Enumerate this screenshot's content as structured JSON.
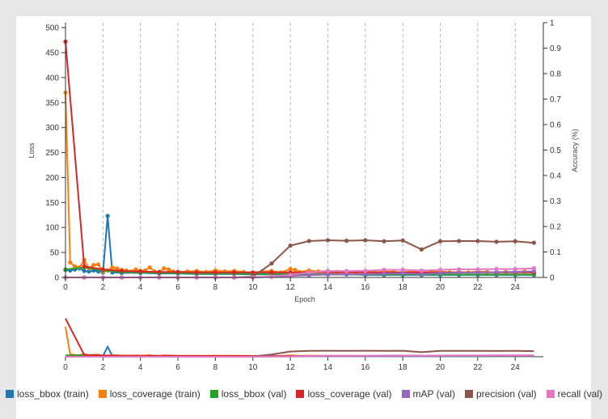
{
  "chart_data": {
    "type": "line",
    "xlabel": "Epoch",
    "ylabel": "Loss",
    "y2label": "Accuracy (%)",
    "xlim": [
      0,
      25.5
    ],
    "ylim": [
      0,
      510
    ],
    "y2lim": [
      0,
      1
    ],
    "xticks": [
      0,
      2,
      4,
      6,
      8,
      10,
      12,
      14,
      16,
      18,
      20,
      22,
      24
    ],
    "yticks": [
      0,
      50,
      100,
      150,
      200,
      250,
      300,
      350,
      400,
      450,
      500
    ],
    "y2ticks": [
      0,
      0.1,
      0.2,
      0.3,
      0.4,
      0.5,
      0.6,
      0.7,
      0.8,
      0.9,
      1
    ],
    "grid": "vertical dashed",
    "legend_position": "bottom",
    "series": [
      {
        "name": "loss_bbox (train)",
        "color": "#1f77b4",
        "axis": "left",
        "x": [
          0,
          0.25,
          0.5,
          0.75,
          1,
          1.25,
          1.5,
          1.75,
          2,
          2.25,
          2.5,
          3,
          4,
          5,
          6,
          7,
          8,
          9,
          10,
          11,
          12,
          13,
          14,
          15,
          16,
          17,
          18,
          19,
          20,
          21,
          22,
          23,
          24,
          25
        ],
        "y": [
          15,
          14,
          16,
          18,
          13,
          12,
          14,
          12,
          10,
          123,
          10,
          9,
          9,
          8,
          8,
          7,
          7,
          7,
          6,
          6,
          6,
          6,
          6,
          6,
          5,
          5,
          5,
          5,
          5,
          5,
          5,
          5,
          5,
          5
        ]
      },
      {
        "name": "loss_coverage (train)",
        "color": "#ff7f0e",
        "axis": "left",
        "x": [
          0,
          0.25,
          0.5,
          0.75,
          1,
          1.25,
          1.5,
          1.75,
          2,
          2.25,
          2.5,
          2.75,
          3,
          3.25,
          3.5,
          3.75,
          4,
          4.25,
          4.5,
          4.75,
          5,
          5.25,
          5.5,
          5.75,
          6,
          6.5,
          7,
          7.5,
          8,
          8.5,
          9,
          9.5,
          10,
          10.5,
          11,
          11.5,
          12,
          12.25,
          12.5,
          13,
          13.5,
          14,
          14.5,
          15,
          15.5,
          16,
          16.5,
          17,
          17.5,
          18,
          18.5,
          19,
          19.5,
          20,
          20.5,
          21,
          21.5,
          22,
          22.5,
          23,
          23.5,
          24,
          24.5,
          25
        ],
        "y": [
          370,
          30,
          22,
          20,
          35,
          18,
          25,
          26,
          12,
          14,
          20,
          18,
          15,
          14,
          12,
          16,
          13,
          14,
          20,
          12,
          10,
          18,
          16,
          12,
          11,
          12,
          13,
          11,
          14,
          12,
          13,
          11,
          10,
          12,
          13,
          10,
          17,
          15,
          11,
          14,
          12,
          13,
          11,
          12,
          11,
          12,
          10,
          12,
          11,
          10,
          12,
          10,
          11,
          12,
          10,
          11,
          10,
          12,
          11,
          10,
          11,
          10,
          12,
          9
        ]
      },
      {
        "name": "loss_bbox (val)",
        "color": "#2ca02c",
        "axis": "left",
        "x": [
          0,
          1,
          2,
          3,
          4,
          5,
          6,
          7,
          8,
          9,
          10,
          11,
          12,
          13,
          14,
          15,
          16,
          17,
          18,
          19,
          20,
          21,
          22,
          23,
          24,
          25
        ],
        "y": [
          16,
          20,
          14,
          11,
          10,
          9,
          9,
          8,
          8,
          8,
          7,
          7,
          7,
          6,
          6,
          6,
          6,
          6,
          6,
          6,
          6,
          6,
          6,
          6,
          6,
          6
        ]
      },
      {
        "name": "loss_coverage (val)",
        "color": "#d62728",
        "axis": "left",
        "x": [
          0,
          1,
          2,
          3,
          4,
          5,
          6,
          7,
          8,
          9,
          10,
          11,
          12,
          13,
          14,
          15,
          16,
          17,
          18,
          19,
          20,
          21,
          22,
          23,
          24,
          25
        ],
        "y": [
          472,
          22,
          16,
          13,
          12,
          11,
          11,
          10,
          10,
          10,
          10,
          10,
          10,
          10,
          10,
          10,
          10,
          10,
          10,
          10,
          10,
          10,
          10,
          10,
          10,
          10
        ]
      },
      {
        "name": "mAP (val)",
        "color": "#9467bd",
        "axis": "right",
        "x": [
          0,
          1,
          2,
          3,
          4,
          5,
          6,
          7,
          8,
          9,
          10,
          11,
          12,
          13,
          14,
          15,
          16,
          17,
          18,
          19,
          20,
          21,
          22,
          23,
          24,
          25
        ],
        "y": [
          0,
          0,
          0,
          0,
          0,
          0,
          0,
          0,
          0,
          0,
          0,
          0.003,
          0.006,
          0.009,
          0.011,
          0.012,
          0.013,
          0.015,
          0.016,
          0.014,
          0.017,
          0.019,
          0.02,
          0.021,
          0.022,
          0.024
        ]
      },
      {
        "name": "precision (val)",
        "color": "#8c564b",
        "axis": "right",
        "x": [
          0,
          1,
          2,
          3,
          4,
          5,
          6,
          7,
          8,
          9,
          10,
          11,
          12,
          13,
          14,
          15,
          16,
          17,
          18,
          19,
          20,
          21,
          22,
          23,
          24,
          25
        ],
        "y": [
          0,
          0,
          0,
          0,
          0,
          0,
          0,
          0,
          0,
          0,
          0.003,
          0.055,
          0.125,
          0.143,
          0.146,
          0.144,
          0.146,
          0.142,
          0.145,
          0.11,
          0.142,
          0.143,
          0.143,
          0.14,
          0.142,
          0.136
        ]
      },
      {
        "name": "recall (val)",
        "color": "#e377c2",
        "axis": "right",
        "x": [
          0,
          1,
          2,
          3,
          4,
          5,
          6,
          7,
          8,
          9,
          10,
          11,
          12,
          13,
          14,
          15,
          16,
          17,
          18,
          19,
          20,
          21,
          22,
          23,
          24,
          25
        ],
        "y": [
          0,
          0,
          0,
          0,
          0,
          0,
          0,
          0,
          0,
          0,
          0,
          0.004,
          0.01,
          0.02,
          0.025,
          0.025,
          0.026,
          0.03,
          0.03,
          0.027,
          0.03,
          0.032,
          0.032,
          0.033,
          0.033,
          0.036
        ]
      }
    ]
  }
}
